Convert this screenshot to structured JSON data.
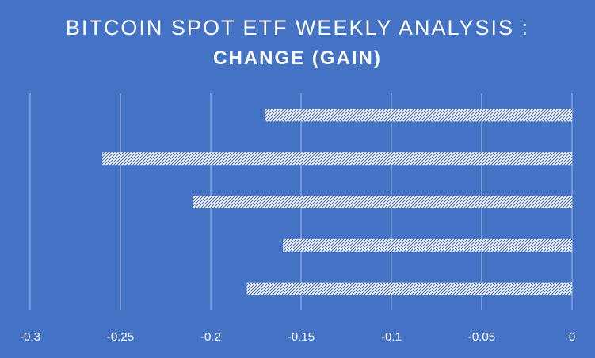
{
  "chart_data": {
    "type": "bar",
    "orientation": "horizontal",
    "title": "BITCOIN SPOT ETF WEEKLY ANALYSIS :",
    "subtitle": "CHANGE (GAIN)",
    "xlabel": "",
    "ylabel": "",
    "xlim": [
      -0.3,
      0
    ],
    "xticks": [
      "-0.3",
      "-0.25",
      "-0.2",
      "-0.15",
      "-0.1",
      "-0.05",
      "0"
    ],
    "grid": true,
    "legend": "none",
    "bar_fill": "white hatched pattern",
    "colors": {
      "background": "#4472c4",
      "bar": "#ffffff",
      "grid": "#ffffff"
    },
    "values": [
      -0.17,
      -0.26,
      -0.21,
      -0.16,
      -0.18
    ]
  }
}
